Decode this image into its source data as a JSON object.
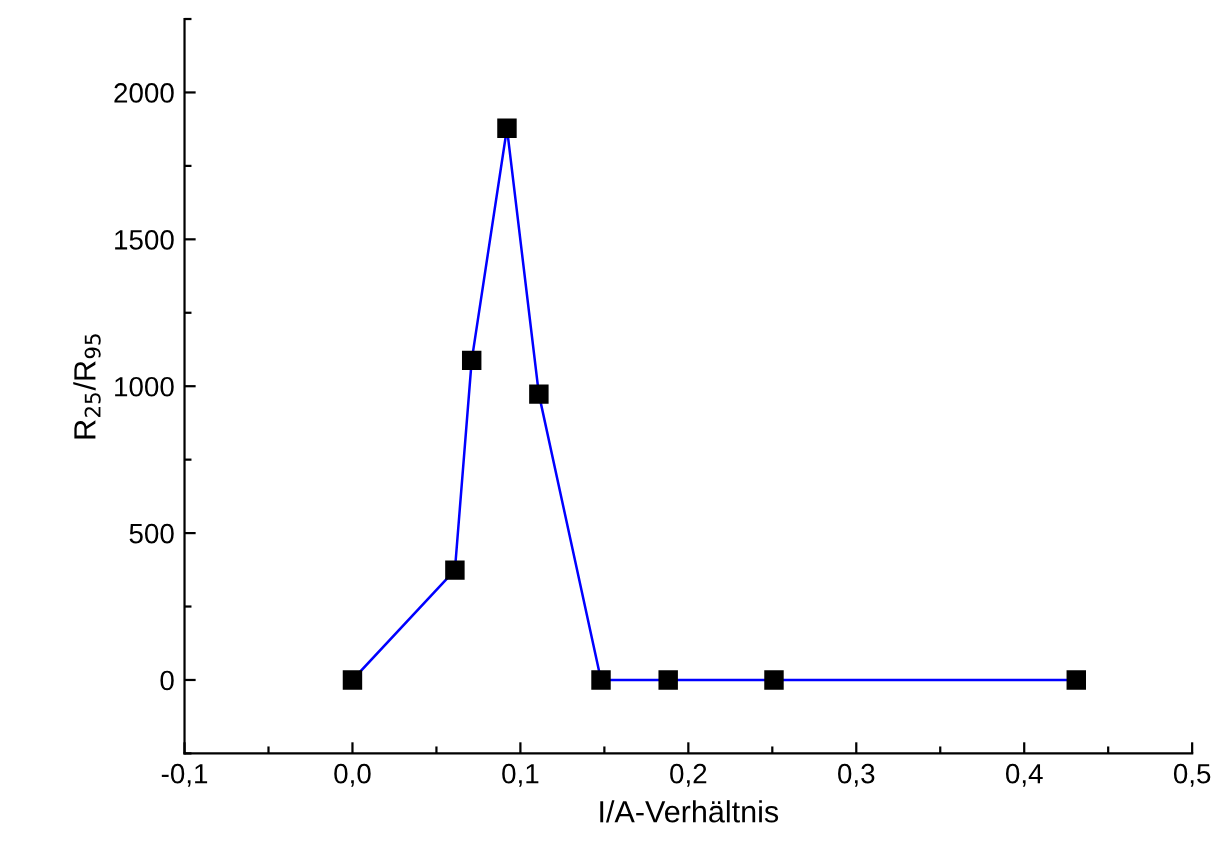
{
  "chart_data": {
    "type": "line",
    "xlabel": "I/A-Verhältnis",
    "ylabel": "R$_{25}$/R$_{95}$",
    "x": [
      0.0,
      0.061,
      0.071,
      0.092,
      0.111,
      0.148,
      0.188,
      0.251,
      0.431
    ],
    "series": [
      {
        "color": "#0000ff",
        "values": [
          0,
          374,
          1088,
          1878,
          973,
          0,
          0,
          0,
          0
        ]
      }
    ],
    "marker": "square",
    "line_style": "solid",
    "grid": false,
    "legend": false,
    "xlim": [
      -0.1,
      0.5
    ],
    "xticks": [
      {
        "value": -0.1,
        "label": "-0,1"
      },
      {
        "value": -0.05,
        "label": null
      },
      {
        "value": 0.0,
        "label": "0,0"
      },
      {
        "value": 0.05,
        "label": null
      },
      {
        "value": 0.1,
        "label": "0,1"
      },
      {
        "value": 0.15,
        "label": null
      },
      {
        "value": 0.2,
        "label": "0,2"
      },
      {
        "value": 0.25,
        "label": null
      },
      {
        "value": 0.3,
        "label": "0,3"
      },
      {
        "value": 0.35,
        "label": null
      },
      {
        "value": 0.4,
        "label": "0,4"
      },
      {
        "value": 0.45,
        "label": null
      },
      {
        "value": 0.5,
        "label": "0,5"
      }
    ],
    "ylim": [
      -250,
      2250
    ],
    "yticks": [
      {
        "value": -250,
        "label": null
      },
      0,
      {
        "value": 250,
        "label": null
      },
      500,
      {
        "value": 750,
        "label": null
      },
      1000,
      {
        "value": 1250,
        "label": null
      },
      1500,
      {
        "value": 1750,
        "label": null
      },
      2000,
      {
        "value": 2250,
        "label": null
      }
    ]
  }
}
